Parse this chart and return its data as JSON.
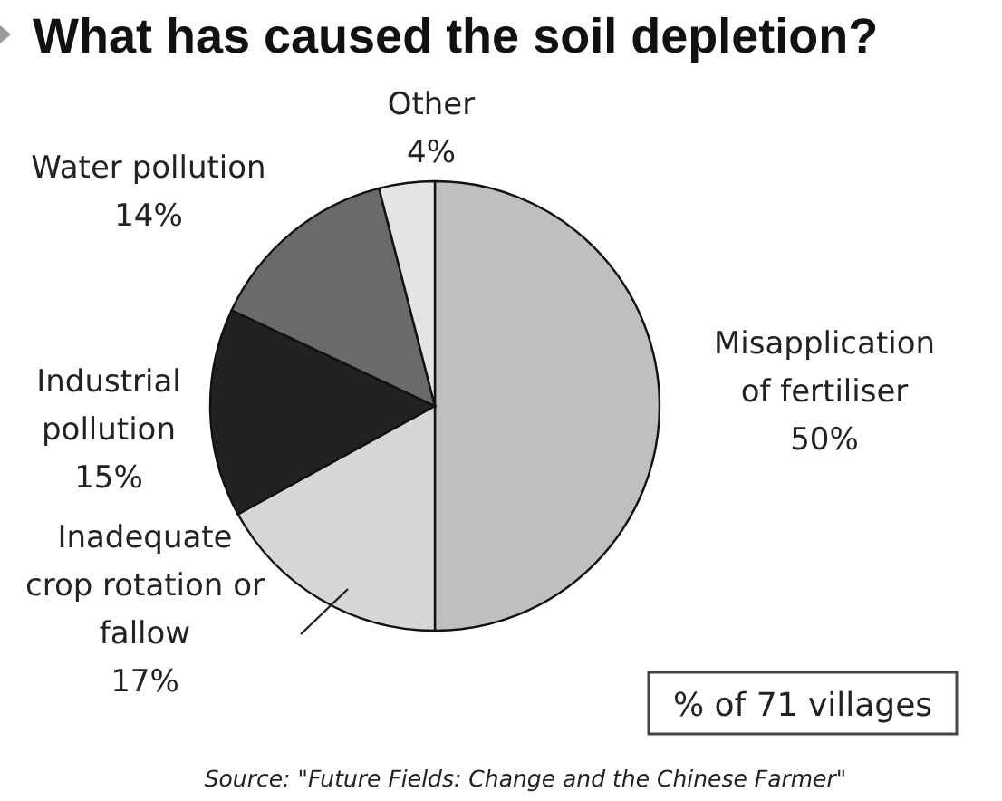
{
  "chart_data": {
    "type": "pie",
    "title": "What has caused the soil depletion?",
    "categories": [
      "Misapplication of fertiliser",
      "Inadequate crop rotation or fallow",
      "Industrial pollution",
      "Water pollution",
      "Other"
    ],
    "values": [
      50,
      17,
      15,
      14,
      4
    ],
    "colors": [
      "#bfbfbf",
      "#d6d6d6",
      "#222222",
      "#6a6a6a",
      "#e4e4e4"
    ],
    "value_labels": [
      "50%",
      "17%",
      "15%",
      "14%",
      "4%"
    ],
    "annotations": [
      "% of 71 villages",
      "Source: \"Future Fields: Change and the Chinese Farmer\""
    ]
  }
}
